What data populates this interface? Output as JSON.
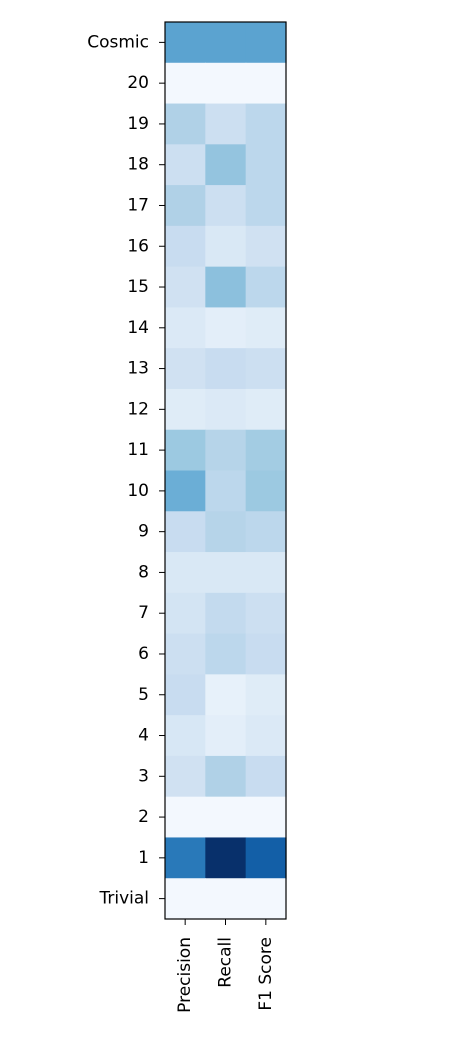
{
  "chart_data": {
    "type": "heatmap",
    "title": "",
    "xlabel": "",
    "ylabel": "",
    "colormap": "Blues",
    "colorbar": false,
    "x_categories": [
      "Precision",
      "Recall",
      "F1 Score"
    ],
    "y_categories": [
      "Cosmic",
      "20",
      "19",
      "18",
      "17",
      "16",
      "15",
      "14",
      "13",
      "12",
      "11",
      "10",
      "9",
      "8",
      "7",
      "6",
      "5",
      "4",
      "3",
      "2",
      "1",
      "Trivial"
    ],
    "values_normalized": [
      [
        0.55,
        0.55,
        0.55
      ],
      [
        0.02,
        0.02,
        0.02
      ],
      [
        0.32,
        0.22,
        0.28
      ],
      [
        0.22,
        0.4,
        0.28
      ],
      [
        0.32,
        0.22,
        0.28
      ],
      [
        0.24,
        0.15,
        0.2
      ],
      [
        0.2,
        0.42,
        0.28
      ],
      [
        0.14,
        0.1,
        0.12
      ],
      [
        0.2,
        0.24,
        0.22
      ],
      [
        0.12,
        0.14,
        0.12
      ],
      [
        0.38,
        0.3,
        0.36
      ],
      [
        0.5,
        0.28,
        0.38
      ],
      [
        0.24,
        0.3,
        0.28
      ],
      [
        0.15,
        0.15,
        0.15
      ],
      [
        0.18,
        0.26,
        0.22
      ],
      [
        0.22,
        0.28,
        0.24
      ],
      [
        0.24,
        0.08,
        0.12
      ],
      [
        0.16,
        0.1,
        0.14
      ],
      [
        0.2,
        0.32,
        0.24
      ],
      [
        0.02,
        0.02,
        0.02
      ],
      [
        0.72,
        1.0,
        0.82
      ],
      [
        0.02,
        0.02,
        0.02
      ]
    ]
  }
}
